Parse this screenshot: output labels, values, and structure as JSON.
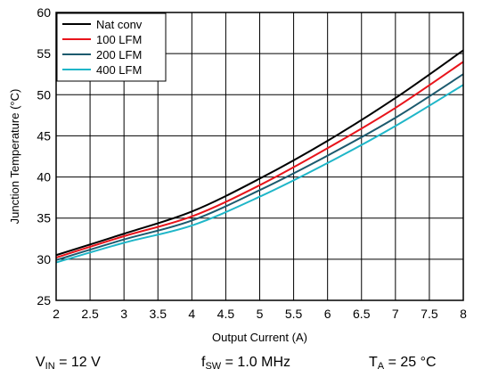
{
  "chart_data": {
    "type": "line",
    "xlabel": "Output Current (A)",
    "ylabel": "Junction Temperature (°C)",
    "xlim": [
      2,
      8
    ],
    "ylim": [
      25,
      60
    ],
    "x_ticks": [
      "2",
      "2.5",
      "3",
      "3.5",
      "4",
      "4.5",
      "5",
      "5.5",
      "6",
      "6.5",
      "7",
      "7.5",
      "8"
    ],
    "y_ticks": [
      "25",
      "30",
      "35",
      "40",
      "45",
      "50",
      "55",
      "60"
    ],
    "grid": true,
    "legend_position": "top-left",
    "series": [
      {
        "name": "Nat conv",
        "color": "#000000",
        "x": [
          2,
          3,
          4,
          5,
          6,
          7,
          8
        ],
        "y": [
          30.5,
          33.1,
          35.8,
          39.8,
          44.4,
          49.6,
          55.4
        ]
      },
      {
        "name": "100 LFM",
        "color": "#e8141b",
        "x": [
          2,
          3,
          4,
          5,
          6,
          7,
          8
        ],
        "y": [
          30.2,
          32.8,
          35.2,
          39.0,
          43.5,
          48.4,
          54.0
        ]
      },
      {
        "name": "200 LFM",
        "color": "#1c5a6e",
        "x": [
          2,
          3,
          4,
          5,
          6,
          7,
          8
        ],
        "y": [
          29.9,
          32.4,
          34.7,
          38.4,
          42.6,
          47.2,
          52.5
        ]
      },
      {
        "name": "400 LFM",
        "color": "#1fb6c8",
        "x": [
          2,
          3,
          4,
          5,
          6,
          7,
          8
        ],
        "y": [
          29.6,
          32.0,
          34.1,
          37.6,
          41.7,
          46.2,
          51.2
        ]
      }
    ]
  },
  "conditions": {
    "vin_main": "V",
    "vin_sub": "IN",
    "vin_value": " = 12 V",
    "fsw_main": "f",
    "fsw_sub": "SW",
    "fsw_value": " = 1.0 MHz",
    "ta_main": "T",
    "ta_sub": "A",
    "ta_value": " = 25 °C"
  }
}
